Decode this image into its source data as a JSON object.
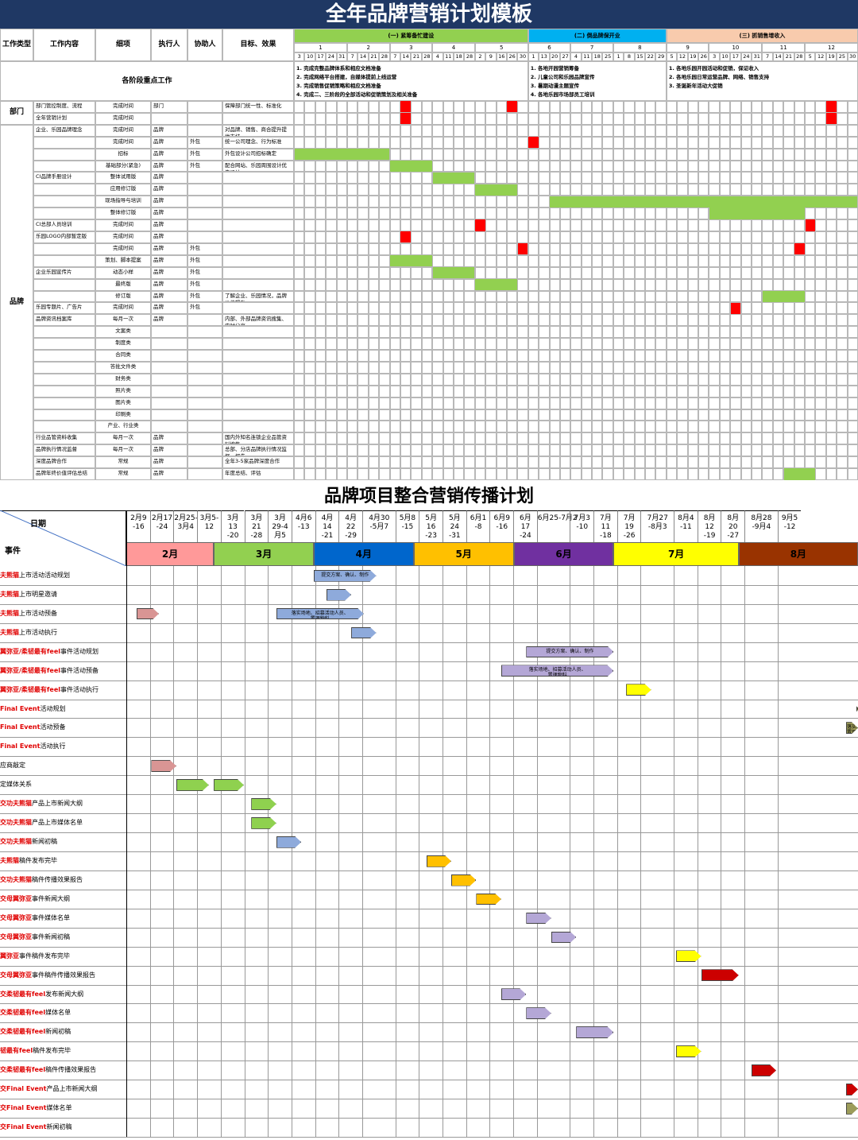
{
  "s1": {
    "title": "全年品牌营销计划模板",
    "headers": [
      "工作类型",
      "工作内容",
      "细项",
      "执行人",
      "协助人",
      "目标、效果"
    ],
    "phases": [
      {
        "label": "(一) 紧筹备忙建设",
        "color": "#92d050"
      },
      {
        "label": "(二) 倒品牌保开业",
        "color": "#00b0f0"
      },
      {
        "label": "(三) 抓销售增收入",
        "color": "#f8cbad"
      }
    ],
    "months": [
      "1",
      "2",
      "3",
      "4",
      "5",
      "6",
      "7",
      "8",
      "9",
      "10",
      "11",
      "12"
    ],
    "days": [
      "3",
      "10",
      "17",
      "24",
      "31",
      "7",
      "14",
      "21",
      "28",
      "7",
      "14",
      "21",
      "28",
      "4",
      "11",
      "18",
      "28",
      "2",
      "9",
      "16",
      "26",
      "30",
      "1",
      "13",
      "20",
      "27",
      "4",
      "11",
      "18",
      "25",
      "1",
      "8",
      "15",
      "22",
      "29",
      "5",
      "12",
      "19",
      "26",
      "3",
      "10",
      "17",
      "24",
      "31",
      "7",
      "14",
      "21",
      "28",
      "5",
      "12",
      "19",
      "25",
      "30"
    ],
    "keypoint_label": "各阶段重点工作",
    "keypoints": [
      "1. 完成完整品牌体系和相应文档准备\n2. 完成网络平台搭建，自媒体提前上线运营\n3. 完成销售促销策略和相应文档准备\n4. 完成二、三阶段的全部活动和促销策划及相关准备",
      "1. 各地开园营销筹备\n2. 儿童公司和乐园品牌宣传\n3. 暑期动漫主题宣传\n4. 各地乐园市场部员工培训",
      "1. 各地乐园开园活动和促销，保证收入\n2. 各地乐园日常运营品牌、网络、销售支持\n3. 圣诞新年活动大促销"
    ],
    "groups": [
      {
        "name": "部门",
        "rows": 2
      },
      {
        "name": "品牌",
        "rows": 30
      }
    ],
    "rows": [
      {
        "content": "部门管控制度、流程",
        "item": "完成时间",
        "exec": "部门",
        "assist": "",
        "goal": "保障部门统一性、标准化"
      },
      {
        "content": "全年营销计划",
        "item": "完成时间",
        "exec": "",
        "assist": "",
        "goal": ""
      },
      {
        "content": "企业、乐园品牌理念",
        "item": "完成时间",
        "exec": "品牌",
        "assist": "",
        "goal": "对品牌、销售、商合提升提供支持"
      },
      {
        "content": "",
        "item": "完成时间",
        "exec": "品牌",
        "assist": "外包",
        "goal": "统一公司理念、行为标准"
      },
      {
        "content": "",
        "item": "招标",
        "exec": "品牌",
        "assist": "外包",
        "goal": "外包设计公司招标确定"
      },
      {
        "content": "",
        "item": "基础部分(紧急)",
        "exec": "品牌",
        "assist": "外包",
        "goal": "配合网站、乐园周围设计优先设计"
      },
      {
        "content": "CI品牌手册设计",
        "item": "整体试用版",
        "exec": "品牌",
        "assist": "",
        "goal": ""
      },
      {
        "content": "",
        "item": "应用修订版",
        "exec": "品牌",
        "assist": "",
        "goal": ""
      },
      {
        "content": "",
        "item": "现场指导与培训",
        "exec": "品牌",
        "assist": "",
        "goal": ""
      },
      {
        "content": "",
        "item": "整体修订版",
        "exec": "品牌",
        "assist": "",
        "goal": ""
      },
      {
        "content": "CI总部人员培训",
        "item": "完成时间",
        "exec": "品牌",
        "assist": "",
        "goal": ""
      },
      {
        "content": "乐园LOGO内部暂定版",
        "item": "完成时间",
        "exec": "品牌",
        "assist": "",
        "goal": ""
      },
      {
        "content": "",
        "item": "完成时间",
        "exec": "品牌",
        "assist": "外包",
        "goal": ""
      },
      {
        "content": "",
        "item": "策划、脚本提案",
        "exec": "品牌",
        "assist": "外包",
        "goal": ""
      },
      {
        "content": "企业乐园宣传片",
        "item": "动态小样",
        "exec": "品牌",
        "assist": "外包",
        "goal": ""
      },
      {
        "content": "",
        "item": "最终版",
        "exec": "品牌",
        "assist": "外包",
        "goal": ""
      },
      {
        "content": "",
        "item": "修订版",
        "exec": "品牌",
        "assist": "外包",
        "goal": "了解企业、乐园情况，品牌价值提升"
      },
      {
        "content": "乐园专题片、广告片",
        "item": "完成时间",
        "exec": "品牌",
        "assist": "外包",
        "goal": ""
      },
      {
        "content": "品牌资讯档案库",
        "item": "每月一次",
        "exec": "品牌",
        "assist": "",
        "goal": "内部、外部品牌资讯搜集、实时分享"
      },
      {
        "content": "",
        "item": "文案类",
        "exec": "",
        "assist": "",
        "goal": ""
      },
      {
        "content": "",
        "item": "制度类",
        "exec": "",
        "assist": "",
        "goal": ""
      },
      {
        "content": "",
        "item": "合同类",
        "exec": "",
        "assist": "",
        "goal": ""
      },
      {
        "content": "",
        "item": "答批文件类",
        "exec": "",
        "assist": "",
        "goal": ""
      },
      {
        "content": "",
        "item": "财务类",
        "exec": "",
        "assist": "",
        "goal": ""
      },
      {
        "content": "",
        "item": "照片类",
        "exec": "",
        "assist": "",
        "goal": ""
      },
      {
        "content": "",
        "item": "图片类",
        "exec": "",
        "assist": "",
        "goal": ""
      },
      {
        "content": "",
        "item": "印刷类",
        "exec": "",
        "assist": "",
        "goal": ""
      },
      {
        "content": "",
        "item": "产业、行业类",
        "exec": "",
        "assist": "",
        "goal": ""
      },
      {
        "content": "行业品管资料收集",
        "item": "每月一次",
        "exec": "品牌",
        "assist": "",
        "goal": "国内外知名连锁企业品管资料搜集"
      },
      {
        "content": "品牌执行情况监督",
        "item": "每月一次",
        "exec": "品牌",
        "assist": "",
        "goal": "总部、分店品牌执行情况监督、报告"
      },
      {
        "content": "深度品牌合作",
        "item": "常规",
        "exec": "品牌",
        "assist": "",
        "goal": "全年3-5家品牌深度合作"
      },
      {
        "content": "品牌年终价值评估总结",
        "item": "常规",
        "exec": "品牌",
        "assist": "",
        "goal": "年度总结、评估"
      }
    ],
    "bars": [
      {
        "row": 0,
        "start": 10,
        "len": 1,
        "kind": "red"
      },
      {
        "row": 0,
        "start": 20,
        "len": 1,
        "kind": "red"
      },
      {
        "row": 0,
        "start": 50,
        "len": 1,
        "kind": "red"
      },
      {
        "row": 1,
        "start": 10,
        "len": 1,
        "kind": "red"
      },
      {
        "row": 1,
        "start": 50,
        "len": 1,
        "kind": "red"
      },
      {
        "row": 3,
        "start": 22,
        "len": 1,
        "kind": "red"
      },
      {
        "row": 4,
        "start": 0,
        "len": 9,
        "kind": "green"
      },
      {
        "row": 5,
        "start": 9,
        "len": 4,
        "kind": "green"
      },
      {
        "row": 6,
        "start": 13,
        "len": 4,
        "kind": "green"
      },
      {
        "row": 7,
        "start": 17,
        "len": 4,
        "kind": "green"
      },
      {
        "row": 8,
        "start": 24,
        "len": 29,
        "kind": "green"
      },
      {
        "row": 9,
        "start": 39,
        "len": 9,
        "kind": "green"
      },
      {
        "row": 10,
        "start": 17,
        "len": 1,
        "kind": "red"
      },
      {
        "row": 10,
        "start": 48,
        "len": 1,
        "kind": "red"
      },
      {
        "row": 11,
        "start": 10,
        "len": 1,
        "kind": "red"
      },
      {
        "row": 12,
        "start": 21,
        "len": 1,
        "kind": "red"
      },
      {
        "row": 12,
        "start": 47,
        "len": 1,
        "kind": "red"
      },
      {
        "row": 13,
        "start": 9,
        "len": 4,
        "kind": "green"
      },
      {
        "row": 14,
        "start": 13,
        "len": 4,
        "kind": "green"
      },
      {
        "row": 15,
        "start": 17,
        "len": 4,
        "kind": "green"
      },
      {
        "row": 16,
        "start": 44,
        "len": 4,
        "kind": "green"
      },
      {
        "row": 17,
        "start": 41,
        "len": 1,
        "kind": "red"
      },
      {
        "row": 31,
        "start": 46,
        "len": 3,
        "kind": "green"
      }
    ]
  },
  "s2": {
    "title": "品牌项目整合营销传播计划",
    "date_label": "日期",
    "event_label": "事件",
    "dates": [
      "2月9\n-16",
      "2月17\n-24",
      "2月25-\n3月4",
      "3月5-\n12",
      "3月\n13\n-20",
      "3月\n21\n-28",
      "3月\n29-4\n月5",
      "4月6\n-13",
      "4月\n14\n-21",
      "4月\n22\n-29",
      "4月30\n-5月7",
      "5月8\n-15",
      "5月\n16\n-23",
      "5月\n24\n-31",
      "6月1\n-8",
      "6月9\n-16",
      "6月\n17\n-24",
      "6月25-7月2",
      "7月3\n-10",
      "7月\n11\n-18",
      "7月\n19\n-26",
      "7月27\n-8月3",
      "8月4\n-11",
      "8月\n12\n-19",
      "8月\n20\n-27",
      "8月28\n-9月4",
      "9月5\n-12"
    ],
    "months": [
      {
        "label": "2月",
        "color": "#ff9999",
        "start": 0,
        "span": 3.5
      },
      {
        "label": "3月",
        "color": "#92d050",
        "start": 3.5,
        "span": 4
      },
      {
        "label": "4月",
        "color": "#0066cc",
        "start": 7.5,
        "span": 4
      },
      {
        "label": "5月",
        "color": "#ffc000",
        "start": 11.5,
        "span": 4
      },
      {
        "label": "6月",
        "color": "#7030a0",
        "start": 15.5,
        "span": 4
      },
      {
        "label": "7月",
        "color": "#ffff00",
        "start": 19.5,
        "span": 5
      },
      {
        "label": "8月",
        "color": "#993300",
        "start": 24.5,
        "span": 5
      },
      {
        "label": "",
        "color": "#808000",
        "start": 29.5,
        "span": 2
      }
    ],
    "events": [
      {
        "red": "夫熊猫",
        "rest": "上市活动活动规划",
        "bold": false
      },
      {
        "red": "夫熊猫",
        "rest": "上市明星邀请",
        "bold": false
      },
      {
        "red": "夫熊猫",
        "rest": "上市活动预备",
        "bold": false
      },
      {
        "red": "夫熊猫",
        "rest": "上市活动执行",
        "bold": false
      },
      {
        "red": "翼弥亚/柔韧最有feel",
        "rest": "事件活动规划",
        "bold": false
      },
      {
        "red": "翼弥亚/柔韧最有feel",
        "rest": "事件活动预备",
        "bold": false
      },
      {
        "red": "翼弥亚/柔韧最有feel",
        "rest": "事件活动执行",
        "bold": false
      },
      {
        "red": "Final Event",
        "rest": "活动规划",
        "bold": false
      },
      {
        "red": "Final Event",
        "rest": "活动预备",
        "bold": false
      },
      {
        "red": "Final Event",
        "rest": "活动执行",
        "bold": false
      },
      {
        "red": "",
        "rest": "应商敲定",
        "bold": false
      },
      {
        "red": "",
        "rest": "定媒体关系",
        "bold": false
      },
      {
        "red": "交功夫熊猫",
        "rest": "产品上市新闻大纲",
        "bold": false
      },
      {
        "red": "交功夫熊猫",
        "rest": "产品上市媒体名单",
        "bold": false
      },
      {
        "red": "交功夫熊猫",
        "rest": "新闻初稿",
        "bold": false
      },
      {
        "red": "夫熊猫",
        "rest": "稿件发布完毕",
        "bold": false
      },
      {
        "red": "交功夫熊猫",
        "rest": "稿件传播效果报告",
        "bold": false
      },
      {
        "red": "交母翼弥亚",
        "rest": "事件新闻大纲",
        "bold": false
      },
      {
        "red": "交母翼弥亚",
        "rest": "事件媒体名单",
        "bold": false
      },
      {
        "red": "交母翼弥亚",
        "rest": "事件新闻初稿",
        "bold": false
      },
      {
        "red": "翼弥亚",
        "rest": "事件稿件发布完毕",
        "bold": false
      },
      {
        "red": "交母翼弥亚",
        "rest": "事件稿件传播效果报告",
        "bold": false
      },
      {
        "red": "交柔韧最有feel",
        "rest": "发布新闻大纲",
        "bold": false
      },
      {
        "red": "交柔韧最有feel",
        "rest": "媒体名单",
        "bold": false
      },
      {
        "red": "交柔韧最有feel",
        "rest": "新闻初稿",
        "bold": false
      },
      {
        "red": "韧最有feel",
        "rest": "稿件发布完毕",
        "bold": false
      },
      {
        "red": "交柔韧最有feel",
        "rest": "稿件传播效果报告",
        "bold": false
      },
      {
        "red": "交Final Event",
        "rest": "产品上市新闻大纲",
        "bold": false
      },
      {
        "red": "交Final Event",
        "rest": "媒体名单",
        "bold": false
      },
      {
        "red": "交Final Event",
        "rest": "新闻初稿",
        "bold": false
      }
    ],
    "arrows": [
      {
        "row": 0,
        "start": 7.5,
        "len": 2.5,
        "color": "#8eaadb",
        "text": "提交方案、确认、制作"
      },
      {
        "row": 1,
        "start": 8,
        "len": 1,
        "color": "#8eaadb",
        "text": ""
      },
      {
        "row": 2,
        "start": 0.4,
        "len": 0.9,
        "color": "#d99594",
        "text": ""
      },
      {
        "row": 2,
        "start": 6,
        "len": 3.5,
        "color": "#8eaadb",
        "text": "落实场地、招募活动人员、\n置理物料"
      },
      {
        "row": 3,
        "start": 9,
        "len": 1,
        "color": "#8eaadb",
        "text": ""
      },
      {
        "row": 4,
        "start": 16,
        "len": 3.5,
        "color": "#b4a7d6",
        "text": "提交方案、确认、制作"
      },
      {
        "row": 5,
        "start": 15,
        "len": 4.5,
        "color": "#b4a7d6",
        "text": "落实场地、招募活动人员、\n置理物料"
      },
      {
        "row": 6,
        "start": 20,
        "len": 1,
        "color": "#ffff00",
        "text": ""
      },
      {
        "row": 7,
        "start": 29.2,
        "len": 2,
        "color": "#9c9c5a",
        "text": "提交方案、确认"
      },
      {
        "row": 8,
        "start": 28.8,
        "len": 2.5,
        "color": "#9c9c5a",
        "text": "落实场地、招募活动人员、\n置理物料"
      },
      {
        "row": 10,
        "start": 1,
        "len": 1,
        "color": "#d99594",
        "text": ""
      },
      {
        "row": 11,
        "start": 2,
        "len": 1.3,
        "color": "#8fd14f",
        "text": ""
      },
      {
        "row": 11,
        "start": 3.5,
        "len": 1.2,
        "color": "#8fd14f",
        "text": ""
      },
      {
        "row": 12,
        "start": 5,
        "len": 1,
        "color": "#8fd14f",
        "text": ""
      },
      {
        "row": 13,
        "start": 5,
        "len": 1,
        "color": "#8fd14f",
        "text": ""
      },
      {
        "row": 14,
        "start": 6,
        "len": 1,
        "color": "#8eaadb",
        "text": ""
      },
      {
        "row": 15,
        "start": 12,
        "len": 1,
        "color": "#ffc000",
        "text": ""
      },
      {
        "row": 16,
        "start": 13,
        "len": 1,
        "color": "#ffc000",
        "text": ""
      },
      {
        "row": 17,
        "start": 14,
        "len": 1,
        "color": "#ffc000",
        "text": ""
      },
      {
        "row": 18,
        "start": 16,
        "len": 1,
        "color": "#b4a7d6",
        "text": ""
      },
      {
        "row": 19,
        "start": 17,
        "len": 1,
        "color": "#b4a7d6",
        "text": ""
      },
      {
        "row": 20,
        "start": 22,
        "len": 1,
        "color": "#ffff00",
        "text": ""
      },
      {
        "row": 21,
        "start": 23,
        "len": 1.5,
        "color": "#cc0000",
        "text": ""
      },
      {
        "row": 22,
        "start": 15,
        "len": 1,
        "color": "#b4a7d6",
        "text": ""
      },
      {
        "row": 23,
        "start": 16,
        "len": 1,
        "color": "#b4a7d6",
        "text": ""
      },
      {
        "row": 24,
        "start": 18,
        "len": 1.5,
        "color": "#b4a7d6",
        "text": ""
      },
      {
        "row": 25,
        "start": 22,
        "len": 1,
        "color": "#ffff00",
        "text": ""
      },
      {
        "row": 26,
        "start": 25,
        "len": 1,
        "color": "#cc0000",
        "text": ""
      },
      {
        "row": 27,
        "start": 28.8,
        "len": 2,
        "color": "#cc0000",
        "text": ""
      },
      {
        "row": 28,
        "start": 28.8,
        "len": 2,
        "color": "#9c9c5a",
        "text": ""
      }
    ]
  }
}
